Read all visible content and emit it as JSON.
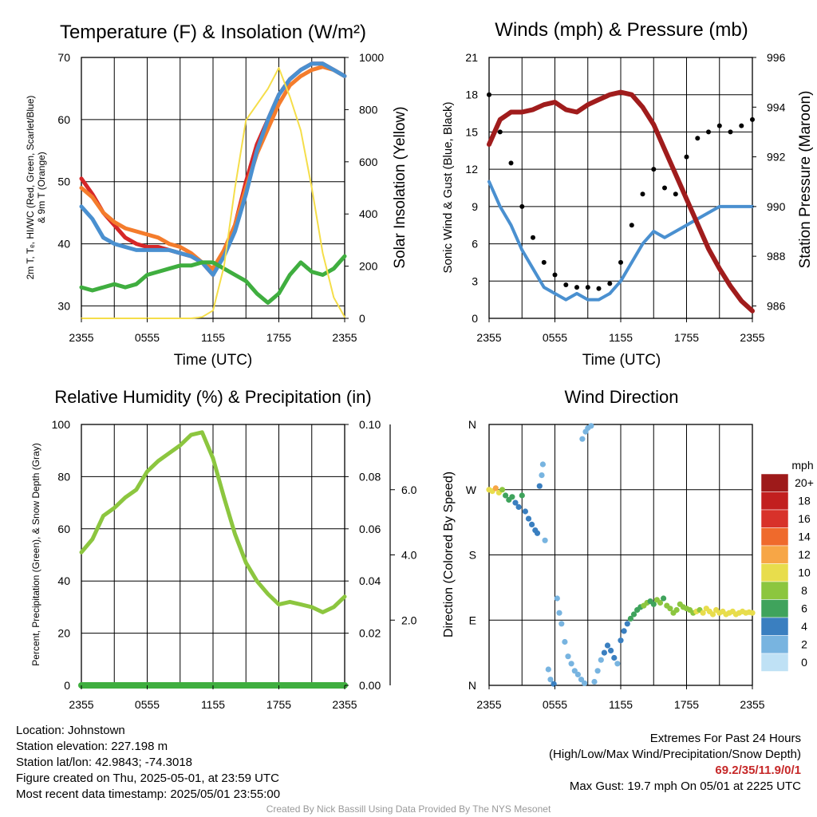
{
  "footer": {
    "location": "Location: Johnstown",
    "elevation": "Station elevation: 227.198 m",
    "latlon": "Station lat/lon: 42.9843; -74.3018",
    "created": "Figure created on Thu, 2025-05-01, at 23:59 UTC",
    "recent": "Most recent data timestamp: 2025/05/01 23:55:00",
    "extremes_title": "Extremes For Past 24 Hours",
    "extremes_desc": "(High/Low/Max Wind/Precipitation/Snow Depth)",
    "extremes_values": "69.2/35/11.9/0/1",
    "max_gust": "Max Gust: 19.7 mph On 05/01 at 2225 UTC",
    "credit": "Created By Nick Bassill Using Data Provided By The NYS Mesonet"
  },
  "colors": {
    "t2m": "#d62728",
    "t9m": "#f47c2c",
    "hiwc": "#d62728",
    "td": "#3fae3f",
    "insolation": "#f5de4a",
    "wind": "#4a90d0",
    "gust": "#000000",
    "pressure": "#a01c1c",
    "rh": "#8cc63f",
    "precip": "#3fae3f"
  },
  "chart_data": [
    {
      "type": "line",
      "title": "Temperature (F) & Insolation (W/m²)",
      "xlabel": "Time (UTC)",
      "ylabel": "2m T, Tₑ, HI/WC (Red, Green, Scarlet/Blue) & 9m T (Orange)",
      "ylabel_line1": "2m T, Tₑ, HI/WC (Red, Green, Scarlet/Blue)",
      "ylabel_line2": "& 9m T (Orange)",
      "y2label": "Solar Insolation (Yellow)",
      "x_ticks": [
        "2355",
        "0555",
        "1155",
        "1755",
        "2355"
      ],
      "ylim": [
        28,
        70
      ],
      "y_ticks": [
        30,
        40,
        50,
        60,
        70
      ],
      "y2lim": [
        0,
        1000
      ],
      "y2_ticks": [
        0,
        200,
        400,
        600,
        800,
        1000
      ],
      "x": [
        0,
        1,
        2,
        3,
        4,
        5,
        6,
        7,
        8,
        9,
        10,
        11,
        12,
        13,
        14,
        15,
        16,
        17,
        18,
        19,
        20,
        21,
        22,
        23,
        24
      ],
      "series": [
        {
          "name": "2m T",
          "color_key": "t2m",
          "values": [
            50.5,
            48,
            45,
            43,
            41,
            40,
            39.5,
            39.5,
            39,
            38.5,
            38,
            37,
            35,
            39,
            43,
            50,
            56,
            60,
            64,
            66.5,
            68,
            69,
            69,
            68,
            67
          ]
        },
        {
          "name": "9m T",
          "color_key": "t9m",
          "values": [
            49,
            47.5,
            45,
            43.5,
            42.5,
            42,
            41.5,
            41,
            40,
            39.5,
            38.5,
            37,
            36,
            39,
            43,
            49,
            54.5,
            58.5,
            62.5,
            65.5,
            67,
            68,
            68.5,
            68,
            67
          ]
        },
        {
          "name": "HI/WC",
          "color_key": "wind",
          "values": [
            46,
            44,
            41,
            40,
            39.5,
            39,
            39,
            39,
            39,
            38.5,
            38,
            37,
            35,
            38,
            42,
            48,
            55,
            60,
            64,
            66.5,
            68,
            69,
            69,
            68,
            67
          ]
        },
        {
          "name": "Td",
          "color_key": "td",
          "values": [
            33,
            32.5,
            33,
            33.5,
            33,
            33.5,
            35,
            35.5,
            36,
            36.5,
            36.5,
            37,
            37,
            36,
            35,
            34,
            32,
            30.5,
            32,
            35,
            37,
            35.5,
            35,
            36,
            38
          ]
        },
        {
          "name": "Solar Insolation",
          "color_key": "insolation",
          "axis": "y2",
          "values": [
            0,
            0,
            0,
            0,
            0,
            0,
            0,
            0,
            0,
            0,
            0,
            5,
            30,
            200,
            500,
            760,
            820,
            880,
            960,
            850,
            720,
            500,
            250,
            80,
            5
          ]
        }
      ]
    },
    {
      "type": "line",
      "title": "Winds (mph) & Pressure (mb)",
      "xlabel": "Time (UTC)",
      "ylabel": "Sonic Wind & Gust (Blue, Black)",
      "y2label": "Station Pressure (Maroon)",
      "x_ticks": [
        "2355",
        "0555",
        "1155",
        "1755",
        "2355"
      ],
      "ylim": [
        0,
        21
      ],
      "y_ticks": [
        0,
        3,
        6,
        9,
        12,
        15,
        18,
        21
      ],
      "y2lim": [
        985.5,
        996
      ],
      "y2_ticks": [
        986,
        988,
        990,
        992,
        994,
        996
      ],
      "x": [
        0,
        1,
        2,
        3,
        4,
        5,
        6,
        7,
        8,
        9,
        10,
        11,
        12,
        13,
        14,
        15,
        16,
        17,
        18,
        19,
        20,
        21,
        22,
        23,
        24
      ],
      "series": [
        {
          "name": "Sonic Wind",
          "color_key": "wind",
          "values": [
            11,
            9,
            7.5,
            5.5,
            4,
            2.5,
            2,
            1.5,
            2,
            1.5,
            1.5,
            2,
            3,
            4.5,
            6,
            7,
            6.5,
            7,
            7.5,
            8,
            8.5,
            9,
            9,
            9,
            9
          ]
        },
        {
          "name": "Gust",
          "color_key": "gust",
          "style": "dots",
          "values": [
            18,
            15,
            12.5,
            9,
            6.5,
            4.5,
            3.5,
            2.7,
            2.5,
            2.5,
            2.4,
            2.8,
            4.5,
            7.5,
            10,
            12,
            10.5,
            10,
            13,
            14.5,
            15,
            15.5,
            15,
            15.5,
            16
          ]
        },
        {
          "name": "Station Pressure",
          "color_key": "pressure",
          "axis": "y2",
          "values": [
            992.5,
            993.5,
            993.8,
            993.8,
            993.9,
            994.1,
            994.2,
            993.9,
            993.8,
            994.1,
            994.3,
            994.5,
            994.6,
            994.5,
            994.0,
            993.3,
            992.3,
            991.3,
            990.3,
            989.3,
            988.3,
            987.5,
            986.8,
            986.2,
            985.8
          ]
        }
      ]
    },
    {
      "type": "line",
      "title": "Relative Humidity (%) & Precipitation (in)",
      "ylabel": "Percent, Precipitation (Green), & Snow Depth (Gray)",
      "x_ticks": [
        "2355",
        "0555",
        "1155",
        "1755",
        "2355"
      ],
      "ylim": [
        0,
        100
      ],
      "y_ticks": [
        0,
        20,
        40,
        60,
        80,
        100
      ],
      "y2lim": [
        0,
        0.1
      ],
      "y2_ticks": [
        "0.00",
        "0.02",
        "0.04",
        "0.06",
        "0.08",
        "0.10"
      ],
      "y3_ticks": [
        "2.0",
        "4.0",
        "6.0"
      ],
      "x": [
        0,
        1,
        2,
        3,
        4,
        5,
        6,
        7,
        8,
        9,
        10,
        11,
        12,
        13,
        14,
        15,
        16,
        17,
        18,
        19,
        20,
        21,
        22,
        23,
        24
      ],
      "series": [
        {
          "name": "Relative Humidity",
          "color_key": "rh",
          "values": [
            51,
            56,
            65,
            68,
            72,
            75,
            82,
            86,
            89,
            92,
            96,
            97,
            87,
            72,
            58,
            47,
            40,
            35,
            31,
            32,
            31,
            30,
            28,
            30,
            34
          ]
        },
        {
          "name": "Precipitation",
          "color_key": "precip",
          "axis": "y2",
          "values": [
            0,
            0,
            0,
            0,
            0,
            0,
            0,
            0,
            0,
            0,
            0,
            0,
            0,
            0,
            0,
            0,
            0,
            0,
            0,
            0,
            0,
            0,
            0,
            0,
            0
          ]
        }
      ]
    },
    {
      "type": "scatter",
      "title": "Wind Direction",
      "ylabel": "Direction (Colored By Speed)",
      "x_ticks": [
        "2355",
        "0555",
        "1155",
        "1755",
        "2355"
      ],
      "y_ticks": [
        "N",
        "E",
        "S",
        "W",
        "N"
      ],
      "ylim": [
        0,
        360
      ],
      "legend_title": "mph",
      "legend_labels": [
        "20+",
        "18",
        "16",
        "14",
        "12",
        "10",
        "8",
        "6",
        "4",
        "2",
        "0"
      ],
      "legend_colors": [
        "#9e1a1a",
        "#c21f1f",
        "#d8322a",
        "#ef6a2c",
        "#f7a646",
        "#e8dd4c",
        "#8cc63f",
        "#3fa35c",
        "#3a7fc0",
        "#78b4e0",
        "#bfe1f5"
      ],
      "points": [
        [
          0.0,
          270,
          10
        ],
        [
          0.3,
          268,
          10
        ],
        [
          0.6,
          272,
          11
        ],
        [
          0.9,
          266,
          9
        ],
        [
          1.2,
          270,
          7
        ],
        [
          1.5,
          262,
          6
        ],
        [
          1.8,
          256,
          5
        ],
        [
          2.1,
          260,
          5
        ],
        [
          2.4,
          252,
          4
        ],
        [
          2.7,
          246,
          4
        ],
        [
          3.0,
          262,
          5
        ],
        [
          3.3,
          240,
          4
        ],
        [
          3.6,
          230,
          3
        ],
        [
          3.9,
          222,
          3
        ],
        [
          4.2,
          214,
          3
        ],
        [
          4.4,
          210,
          3
        ],
        [
          4.6,
          275,
          3
        ],
        [
          4.8,
          290,
          2
        ],
        [
          4.9,
          305,
          2
        ],
        [
          5.1,
          200,
          2
        ],
        [
          5.4,
          22,
          2
        ],
        [
          5.6,
          8,
          2
        ],
        [
          5.9,
          2,
          3
        ],
        [
          6.2,
          120,
          1
        ],
        [
          6.4,
          100,
          1
        ],
        [
          6.6,
          85,
          1
        ],
        [
          6.9,
          60,
          1
        ],
        [
          7.2,
          40,
          2
        ],
        [
          7.5,
          30,
          2
        ],
        [
          7.8,
          20,
          2
        ],
        [
          8.1,
          15,
          2
        ],
        [
          8.4,
          8,
          2
        ],
        [
          8.7,
          3,
          2
        ],
        [
          8.5,
          340,
          1
        ],
        [
          8.8,
          350,
          1
        ],
        [
          9.0,
          355,
          1
        ],
        [
          9.3,
          358,
          1
        ],
        [
          9.6,
          5,
          2
        ],
        [
          9.9,
          20,
          2
        ],
        [
          10.2,
          35,
          2
        ],
        [
          10.5,
          45,
          3
        ],
        [
          10.8,
          55,
          3
        ],
        [
          11.1,
          48,
          3
        ],
        [
          11.4,
          38,
          3
        ],
        [
          11.7,
          30,
          2
        ],
        [
          12.0,
          62,
          3
        ],
        [
          12.3,
          75,
          4
        ],
        [
          12.6,
          85,
          4
        ],
        [
          12.9,
          92,
          5
        ],
        [
          13.2,
          98,
          6
        ],
        [
          13.5,
          104,
          6
        ],
        [
          13.8,
          108,
          6
        ],
        [
          14.1,
          110,
          7
        ],
        [
          14.4,
          114,
          7
        ],
        [
          14.7,
          116,
          5
        ],
        [
          15.0,
          112,
          6
        ],
        [
          15.3,
          118,
          7
        ],
        [
          15.6,
          114,
          7
        ],
        [
          15.9,
          120,
          6
        ],
        [
          16.2,
          110,
          7
        ],
        [
          16.5,
          106,
          7
        ],
        [
          16.8,
          100,
          8
        ],
        [
          17.1,
          104,
          8
        ],
        [
          17.4,
          112,
          7
        ],
        [
          17.7,
          108,
          7
        ],
        [
          18.0,
          106,
          8
        ],
        [
          18.3,
          104,
          8
        ],
        [
          18.6,
          100,
          8
        ],
        [
          18.9,
          102,
          9
        ],
        [
          19.2,
          104,
          8
        ],
        [
          19.5,
          100,
          9
        ],
        [
          19.8,
          106,
          10
        ],
        [
          20.1,
          102,
          9
        ],
        [
          20.4,
          98,
          10
        ],
        [
          20.7,
          104,
          10
        ],
        [
          21.0,
          100,
          9
        ],
        [
          21.3,
          102,
          10
        ],
        [
          21.6,
          98,
          9
        ],
        [
          21.9,
          100,
          10
        ],
        [
          22.2,
          102,
          10
        ],
        [
          22.5,
          98,
          9
        ],
        [
          22.8,
          100,
          10
        ],
        [
          23.1,
          102,
          10
        ],
        [
          23.4,
          100,
          9
        ],
        [
          23.7,
          101,
          10
        ],
        [
          24.0,
          100,
          9
        ]
      ]
    }
  ]
}
